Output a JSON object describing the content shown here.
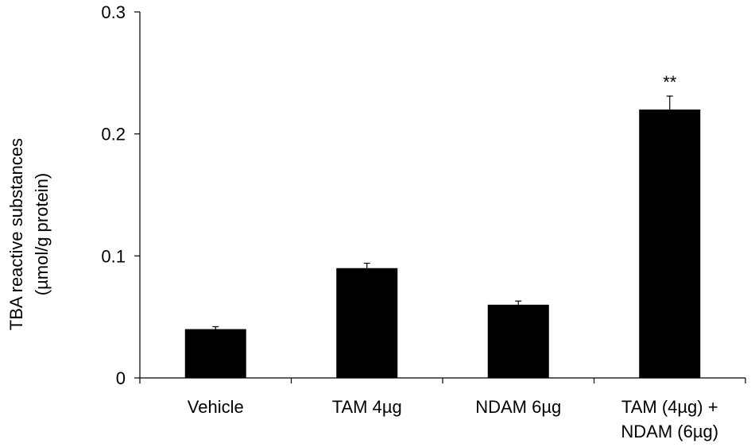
{
  "chart_data": {
    "type": "bar",
    "title": "",
    "xlabel": "",
    "ylabel": [
      "TBA reactive substances",
      "(µmol/g protein)"
    ],
    "ylim": [
      0,
      0.3
    ],
    "yticks": [
      {
        "value": 0,
        "label": "0"
      },
      {
        "value": 0.1,
        "label": "0.1"
      },
      {
        "value": 0.2,
        "label": "0.2"
      },
      {
        "value": 0.3,
        "label": "0.3"
      }
    ],
    "categories": [
      [
        "Vehicle"
      ],
      [
        "TAM 4µg"
      ],
      [
        "NDAM 6µg"
      ],
      [
        "TAM (4µg) +",
        "NDAM (6µg)"
      ]
    ],
    "values": [
      0.04,
      0.09,
      0.06,
      0.22
    ],
    "errors": [
      0.002,
      0.004,
      0.003,
      0.011
    ],
    "significance": [
      "",
      "",
      "",
      "**"
    ],
    "bar_color": "#000000",
    "grid": false,
    "legend": "none"
  }
}
